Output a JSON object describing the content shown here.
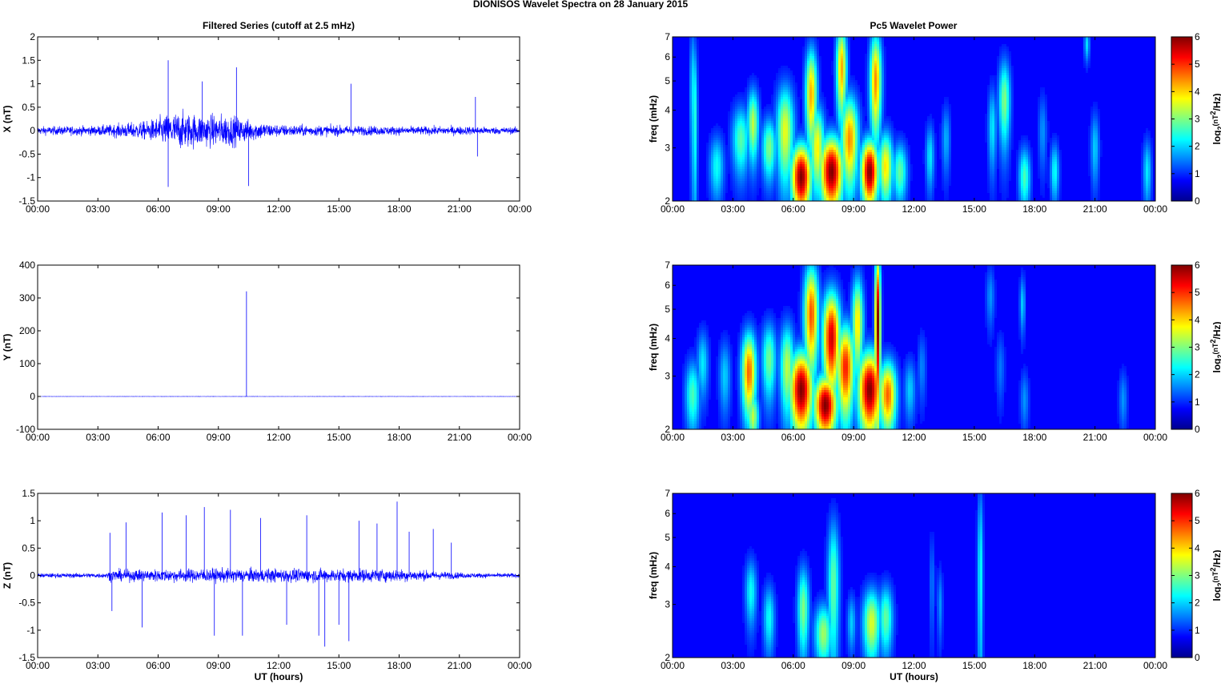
{
  "figure": {
    "title": "DIONISOS Wavelet Spectra on 28 January   2015",
    "left_title": "Filtered Series (cutoff at 2.5 mHz)",
    "right_title": "Pc5 Wavelet Power"
  },
  "chart_data": [
    {
      "type": "line",
      "ylabel": "X (nT)",
      "xlabel": "",
      "xticks": [
        "00:00",
        "03:00",
        "06:00",
        "09:00",
        "12:00",
        "15:00",
        "18:00",
        "21:00",
        "00:00"
      ],
      "xlim": [
        0,
        24
      ],
      "ylim": [
        -1.5,
        2
      ],
      "yticks": [
        -1.5,
        -1,
        -0.5,
        0,
        0.5,
        1,
        1.5,
        2
      ],
      "series": [
        {
          "color": "#0000ff",
          "envelope": [
            [
              0,
              0.15
            ],
            [
              3,
              0.18
            ],
            [
              4,
              0.25
            ],
            [
              5.5,
              0.35
            ],
            [
              6,
              0.5
            ],
            [
              7,
              0.7
            ],
            [
              8,
              0.6
            ],
            [
              9.5,
              0.6
            ],
            [
              10.5,
              0.4
            ],
            [
              12,
              0.22
            ],
            [
              14,
              0.2
            ],
            [
              18,
              0.16
            ],
            [
              21,
              0.16
            ],
            [
              24,
              0.12
            ]
          ],
          "spikes": [
            [
              6.5,
              1.5
            ],
            [
              6.5,
              -1.2
            ],
            [
              8.2,
              1.05
            ],
            [
              9.9,
              1.35
            ],
            [
              10.5,
              -1.18
            ],
            [
              15.6,
              1.0
            ],
            [
              21.8,
              0.72
            ],
            [
              21.9,
              -0.55
            ]
          ]
        }
      ]
    },
    {
      "type": "line",
      "ylabel": "Y (nT)",
      "xlabel": "",
      "xticks": [
        "00:00",
        "03:00",
        "06:00",
        "09:00",
        "12:00",
        "15:00",
        "18:00",
        "21:00",
        "00:00"
      ],
      "xlim": [
        0,
        24
      ],
      "ylim": [
        -100,
        400
      ],
      "yticks": [
        -100,
        0,
        100,
        200,
        300,
        400
      ],
      "series": [
        {
          "color": "#0000ff",
          "envelope": [
            [
              0,
              0.6
            ],
            [
              24,
              0.6
            ]
          ],
          "spikes": [
            [
              10.4,
              320
            ]
          ]
        }
      ]
    },
    {
      "type": "line",
      "ylabel": "Z (nT)",
      "xlabel": "UT (hours)",
      "xticks": [
        "00:00",
        "03:00",
        "06:00",
        "09:00",
        "12:00",
        "15:00",
        "18:00",
        "21:00",
        "00:00"
      ],
      "xlim": [
        0,
        24
      ],
      "ylim": [
        -1.5,
        1.5
      ],
      "yticks": [
        -1.5,
        -1,
        -0.5,
        0,
        0.5,
        1,
        1.5
      ],
      "series": [
        {
          "color": "#0000ff",
          "envelope": [
            [
              0,
              0.07
            ],
            [
              3.5,
              0.08
            ],
            [
              3.6,
              0.18
            ],
            [
              9,
              0.22
            ],
            [
              18,
              0.2
            ],
            [
              21.5,
              0.08
            ],
            [
              24,
              0.07
            ]
          ],
          "spikes": [
            [
              3.6,
              0.78
            ],
            [
              3.7,
              -0.65
            ],
            [
              4.4,
              0.97
            ],
            [
              5.2,
              -0.95
            ],
            [
              6.2,
              1.15
            ],
            [
              7.4,
              1.1
            ],
            [
              8.3,
              1.25
            ],
            [
              8.8,
              -1.1
            ],
            [
              9.6,
              1.2
            ],
            [
              10.2,
              -1.1
            ],
            [
              11.1,
              1.05
            ],
            [
              12.4,
              -0.9
            ],
            [
              13.4,
              1.1
            ],
            [
              14.0,
              -1.1
            ],
            [
              14.3,
              -1.3
            ],
            [
              15.0,
              -0.9
            ],
            [
              15.5,
              -1.2
            ],
            [
              16.0,
              1.0
            ],
            [
              16.9,
              0.95
            ],
            [
              17.9,
              1.35
            ],
            [
              18.5,
              0.8
            ],
            [
              19.7,
              0.85
            ],
            [
              20.6,
              0.6
            ]
          ]
        }
      ]
    },
    {
      "type": "heatmap",
      "title": "",
      "ylabel": "freq (mHz)",
      "xlabel": "",
      "colorbar_label": "log2(nT2/Hz)",
      "colormap": "jet",
      "clim": [
        0,
        6
      ],
      "xlim": [
        0,
        24
      ],
      "ylim": [
        2,
        7
      ],
      "yscale": "log",
      "yticks": [
        2,
        3,
        4,
        5,
        6,
        7
      ],
      "xticks": [
        "00:00",
        "03:00",
        "06:00",
        "09:00",
        "12:00",
        "15:00",
        "18:00",
        "21:00",
        "00:00"
      ],
      "blobs": [
        [
          1.1,
          3.8,
          0.1,
          1.8,
          2.0
        ],
        [
          2.2,
          2.6,
          0.25,
          0.45,
          1.8
        ],
        [
          3.4,
          3.2,
          0.3,
          0.6,
          2.3
        ],
        [
          4.0,
          3.6,
          0.2,
          0.7,
          3.0
        ],
        [
          4.8,
          3.0,
          0.25,
          0.5,
          2.6
        ],
        [
          5.6,
          3.4,
          0.3,
          0.9,
          3.3
        ],
        [
          6.4,
          2.4,
          0.35,
          0.45,
          6.0
        ],
        [
          6.9,
          4.5,
          0.2,
          1.2,
          4.0
        ],
        [
          7.2,
          3.0,
          0.25,
          0.7,
          3.5
        ],
        [
          7.9,
          2.5,
          0.4,
          0.5,
          6.0
        ],
        [
          8.4,
          5.5,
          0.18,
          1.4,
          4.0
        ],
        [
          8.8,
          3.2,
          0.3,
          0.8,
          4.2
        ],
        [
          9.8,
          2.5,
          0.3,
          0.45,
          6.0
        ],
        [
          10.1,
          5.0,
          0.2,
          1.4,
          4.2
        ],
        [
          10.6,
          2.6,
          0.25,
          0.5,
          3.6
        ],
        [
          11.3,
          2.5,
          0.25,
          0.4,
          2.4
        ],
        [
          12.8,
          2.8,
          0.15,
          0.5,
          1.6
        ],
        [
          13.6,
          3.2,
          0.15,
          0.6,
          1.2
        ],
        [
          15.9,
          3.5,
          0.15,
          0.8,
          1.6
        ],
        [
          16.5,
          4.3,
          0.2,
          1.0,
          2.6
        ],
        [
          17.5,
          2.4,
          0.2,
          0.4,
          2.2
        ],
        [
          18.4,
          3.4,
          0.15,
          0.7,
          1.0
        ],
        [
          19.0,
          2.5,
          0.15,
          0.4,
          1.8
        ],
        [
          21.0,
          3.0,
          0.15,
          0.6,
          1.4
        ],
        [
          23.6,
          2.5,
          0.15,
          0.45,
          1.6
        ],
        [
          20.6,
          6.6,
          0.1,
          0.6,
          1.5
        ],
        [
          1.0,
          4.6,
          0.1,
          1.8,
          1.6
        ]
      ]
    },
    {
      "type": "heatmap",
      "title": "",
      "ylabel": "freq (mHz)",
      "xlabel": "",
      "colorbar_label": "log2(nT2/Hz)",
      "colormap": "jet",
      "clim": [
        0,
        6
      ],
      "xlim": [
        0,
        24
      ],
      "ylim": [
        2,
        7
      ],
      "yscale": "log",
      "yticks": [
        2,
        3,
        4,
        5,
        6,
        7
      ],
      "xticks": [
        "00:00",
        "03:00",
        "06:00",
        "09:00",
        "12:00",
        "15:00",
        "18:00",
        "21:00",
        "00:00"
      ],
      "blobs": [
        [
          1.0,
          2.6,
          0.25,
          0.5,
          2.2
        ],
        [
          1.5,
          3.3,
          0.2,
          0.6,
          1.6
        ],
        [
          2.6,
          3.0,
          0.2,
          0.6,
          1.4
        ],
        [
          3.8,
          3.1,
          0.25,
          0.7,
          4.5
        ],
        [
          4.0,
          2.2,
          0.2,
          0.3,
          3.0
        ],
        [
          4.8,
          3.4,
          0.25,
          0.7,
          2.5
        ],
        [
          5.7,
          3.2,
          0.25,
          0.8,
          3.0
        ],
        [
          6.4,
          2.7,
          0.4,
          0.6,
          6.0
        ],
        [
          6.9,
          4.8,
          0.25,
          1.4,
          4.6
        ],
        [
          7.6,
          2.4,
          0.4,
          0.4,
          6.0
        ],
        [
          7.9,
          4.0,
          0.3,
          1.1,
          5.5
        ],
        [
          8.6,
          3.2,
          0.3,
          0.8,
          5.0
        ],
        [
          9.2,
          4.5,
          0.2,
          1.2,
          3.6
        ],
        [
          9.8,
          2.7,
          0.4,
          0.6,
          6.0
        ],
        [
          10.2,
          4.5,
          0.1,
          2.0,
          6.0
        ],
        [
          10.7,
          2.6,
          0.3,
          0.5,
          4.5
        ],
        [
          11.8,
          2.7,
          0.2,
          0.45,
          1.4
        ],
        [
          12.4,
          3.2,
          0.15,
          0.6,
          0.9
        ],
        [
          15.8,
          5.5,
          0.15,
          0.9,
          1.0
        ],
        [
          16.3,
          3.2,
          0.15,
          0.6,
          0.8
        ],
        [
          17.5,
          2.5,
          0.15,
          0.4,
          1.0
        ],
        [
          17.4,
          5.2,
          0.1,
          0.8,
          1.4
        ],
        [
          22.4,
          2.5,
          0.15,
          0.4,
          1.0
        ]
      ]
    },
    {
      "type": "heatmap",
      "title": "",
      "ylabel": "freq (mHz)",
      "xlabel": "UT (hours)",
      "colorbar_label": "log2(nT2/Hz)",
      "colormap": "jet",
      "clim": [
        0,
        6
      ],
      "xlim": [
        0,
        24
      ],
      "ylim": [
        2,
        7
      ],
      "yscale": "log",
      "yticks": [
        2,
        3,
        4,
        5,
        6,
        7
      ],
      "xticks": [
        "00:00",
        "03:00",
        "06:00",
        "09:00",
        "12:00",
        "15:00",
        "18:00",
        "21:00",
        "00:00"
      ],
      "blobs": [
        [
          3.9,
          3.3,
          0.2,
          0.6,
          1.8
        ],
        [
          4.8,
          2.7,
          0.2,
          0.5,
          1.8
        ],
        [
          6.5,
          2.9,
          0.2,
          0.7,
          2.6
        ],
        [
          7.5,
          2.4,
          0.3,
          0.4,
          2.8
        ],
        [
          8.0,
          3.5,
          0.2,
          1.4,
          2.4
        ],
        [
          9.9,
          2.6,
          0.3,
          0.5,
          3.2
        ],
        [
          10.6,
          2.7,
          0.25,
          0.5,
          2.4
        ],
        [
          8.9,
          2.6,
          0.15,
          0.4,
          1.4
        ],
        [
          15.3,
          3.8,
          0.1,
          2.2,
          1.8
        ],
        [
          13.3,
          3.0,
          0.1,
          0.6,
          1.0
        ],
        [
          12.9,
          3.5,
          0.1,
          1.0,
          0.8
        ]
      ]
    }
  ]
}
